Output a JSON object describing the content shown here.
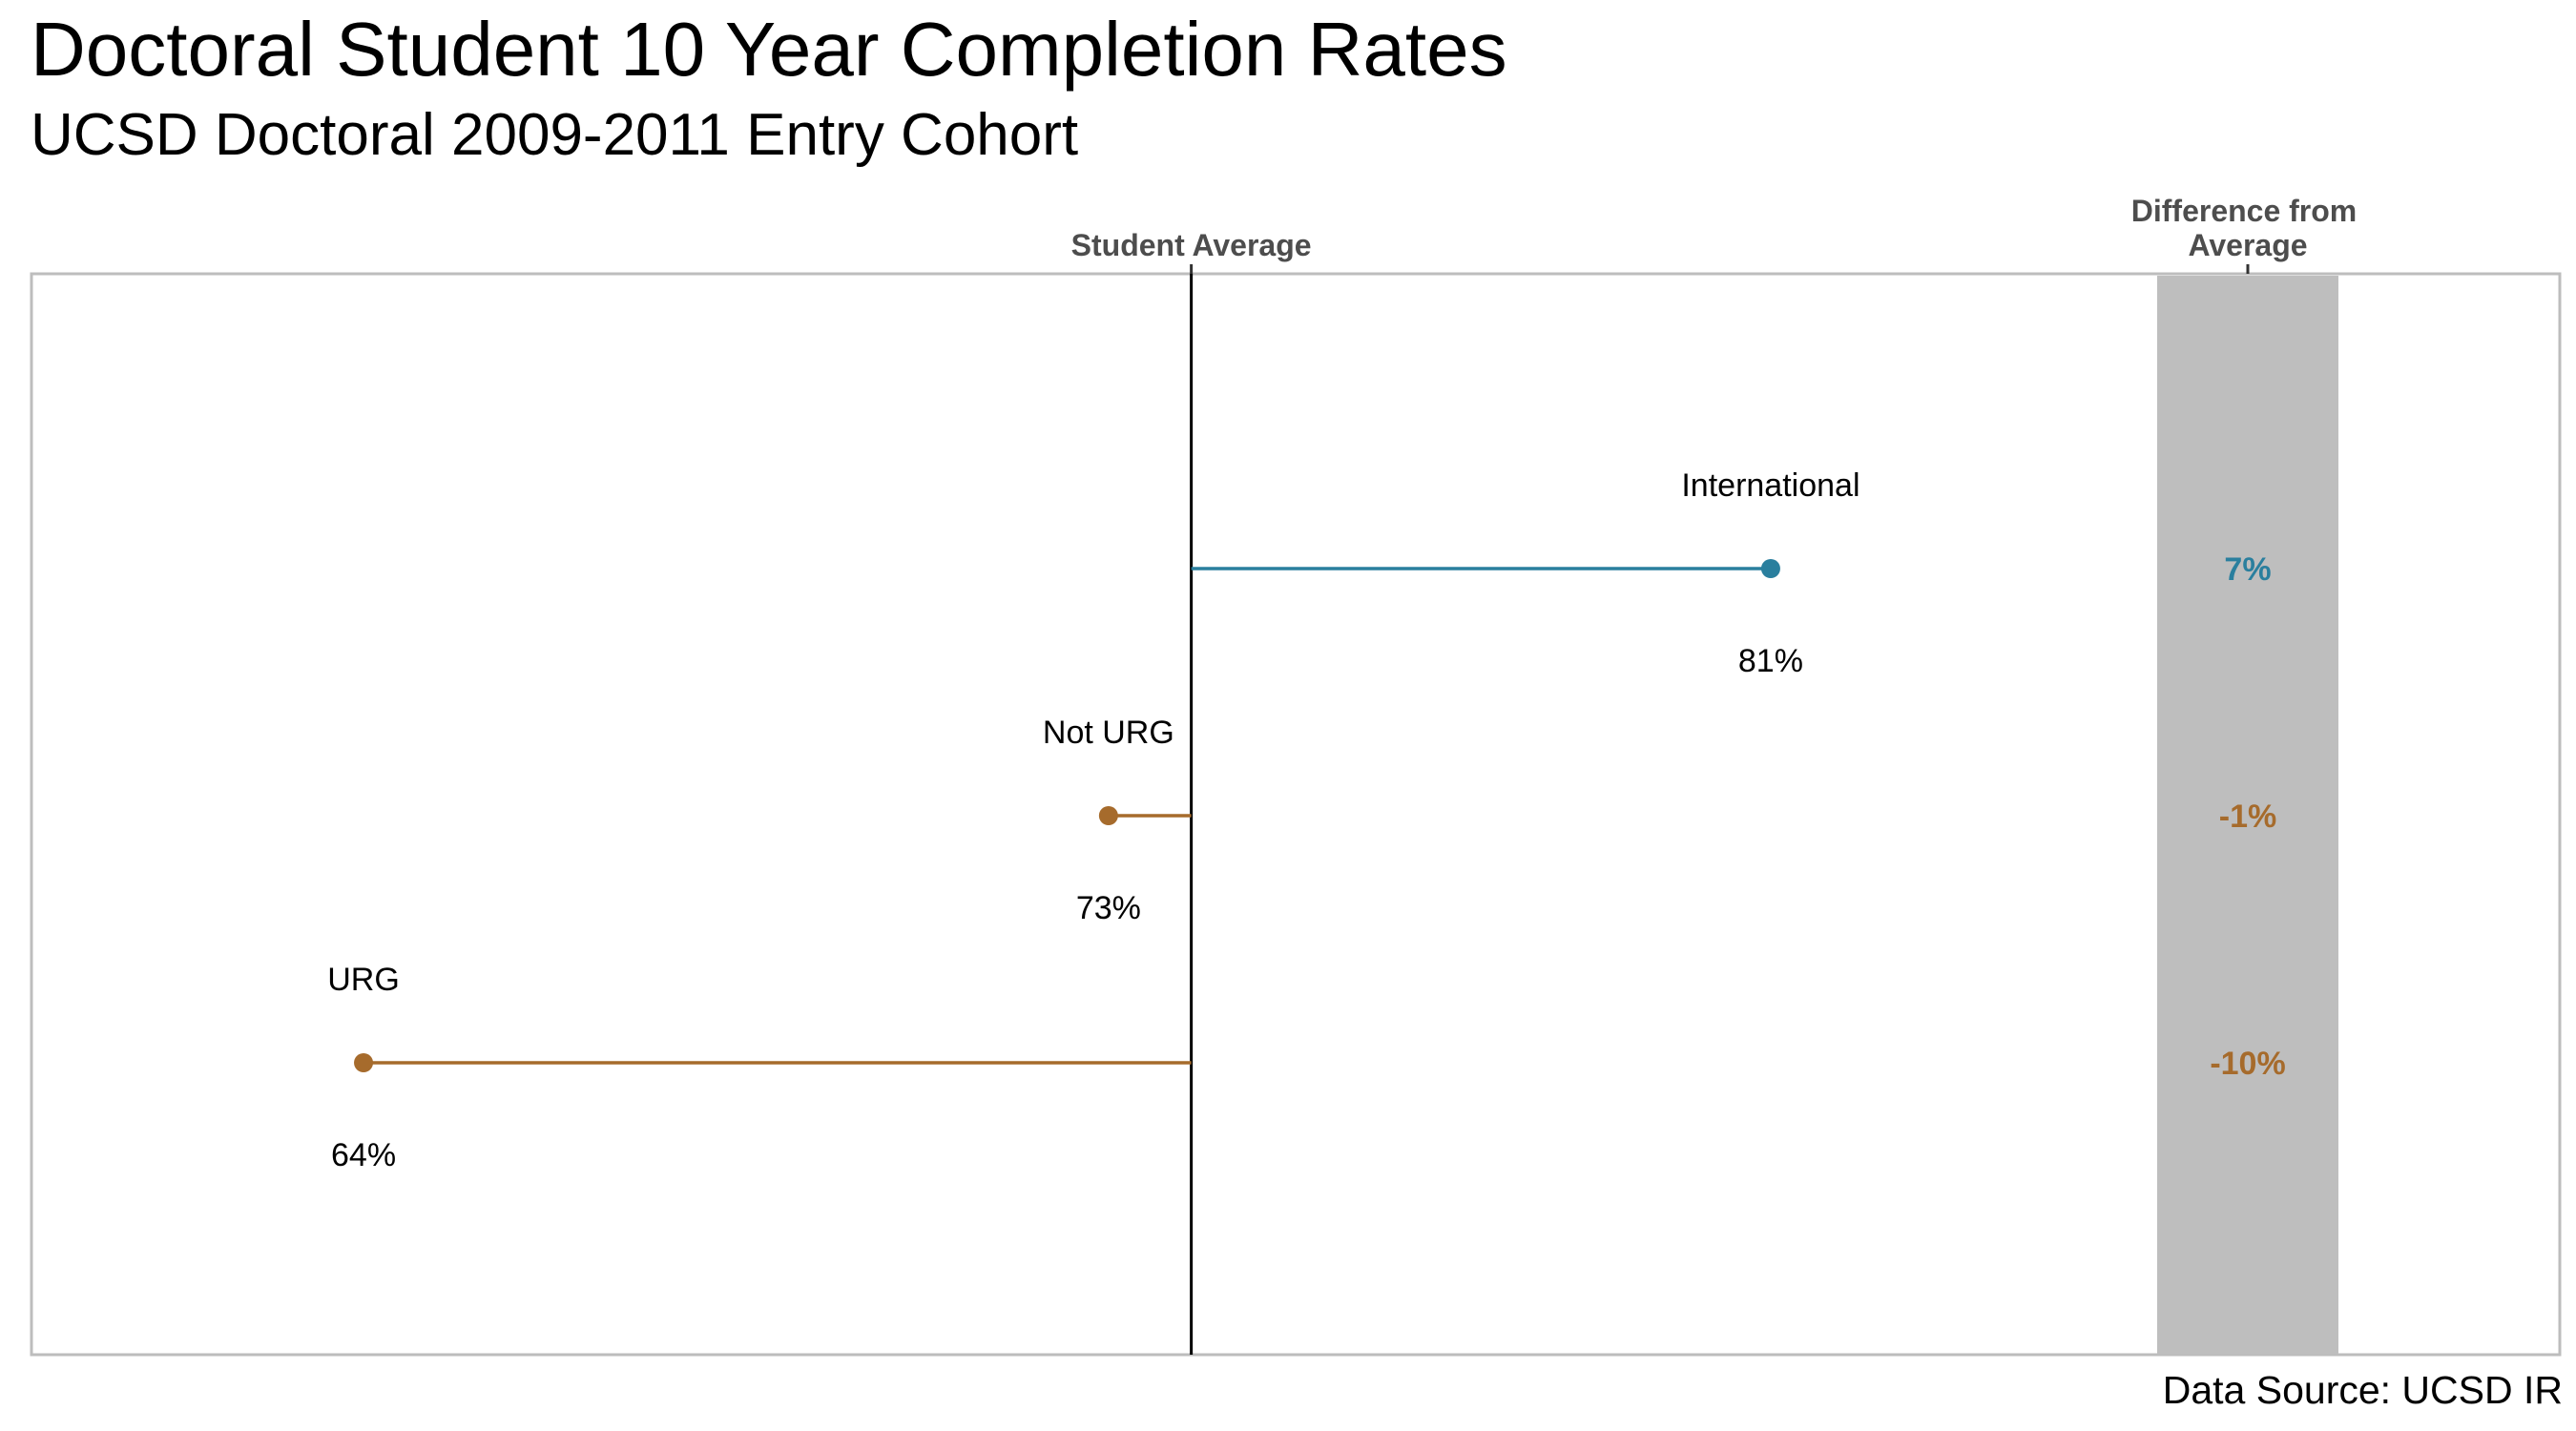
{
  "title": "Doctoral Student 10 Year Completion Rates",
  "subtitle": "UCSD Doctoral 2009-2011 Entry Cohort",
  "source": "Data Source: UCSD IR",
  "colors": {
    "above_average": "#2a7f9e",
    "below_average": "#a66b2c",
    "difference_band": "#bebebe",
    "panel_border": "#bdbdbd",
    "average_line": "#000000"
  },
  "chart_data": {
    "type": "dot-line",
    "x_axis_top_labels": [
      "Student Average",
      "Difference from Average"
    ],
    "average_value": 74,
    "average_label": "Student Average",
    "difference_column_title": "Difference from Average",
    "difference_column_title_lines": [
      "Difference from",
      "Average"
    ],
    "xlim": [
      60,
      89
    ],
    "grid": false,
    "categories": [
      "International",
      "Not URG",
      "URG"
    ],
    "values": [
      81,
      73,
      64
    ],
    "value_labels": [
      "81%",
      "73%",
      "64%"
    ],
    "difference_labels": [
      "7%",
      "-1%",
      "-10%"
    ],
    "differences": [
      7,
      -1,
      -10
    ]
  }
}
